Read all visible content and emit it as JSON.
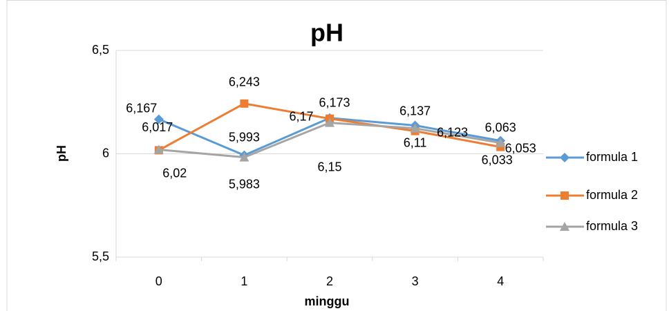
{
  "chart_data": {
    "type": "line",
    "title": "pH",
    "x_label": "minggu",
    "y_label": "pH",
    "categories": [
      "0",
      "1",
      "2",
      "3",
      "4"
    ],
    "series": [
      {
        "name": "formula 1",
        "color": "#5b9bd5",
        "marker": "diamond",
        "values": [
          6.167,
          5.993,
          6.173,
          6.137,
          6.063
        ],
        "value_labels": [
          "6,167",
          "5,993",
          "6,173",
          "6,137",
          "6,063"
        ]
      },
      {
        "name": "formula 2",
        "color": "#ed7d31",
        "marker": "square",
        "values": [
          6.017,
          6.243,
          6.17,
          6.11,
          6.033
        ],
        "value_labels": [
          "6,017",
          "6,243",
          "6,17",
          "6,11",
          "6,033"
        ]
      },
      {
        "name": "formula 3",
        "color": "#a5a5a5",
        "marker": "triangle",
        "values": [
          6.02,
          5.983,
          6.15,
          6.123,
          6.053
        ],
        "value_labels": [
          "6,02",
          "5,983",
          "6,15",
          "6,123",
          "6,053"
        ]
      }
    ],
    "ylim": [
      5.5,
      6.5
    ],
    "yticks": [
      {
        "value": 5.5,
        "label": "5,5"
      },
      6,
      {
        "value": 6.5,
        "label": "6,5"
      }
    ],
    "grid": true,
    "legend": "right"
  }
}
